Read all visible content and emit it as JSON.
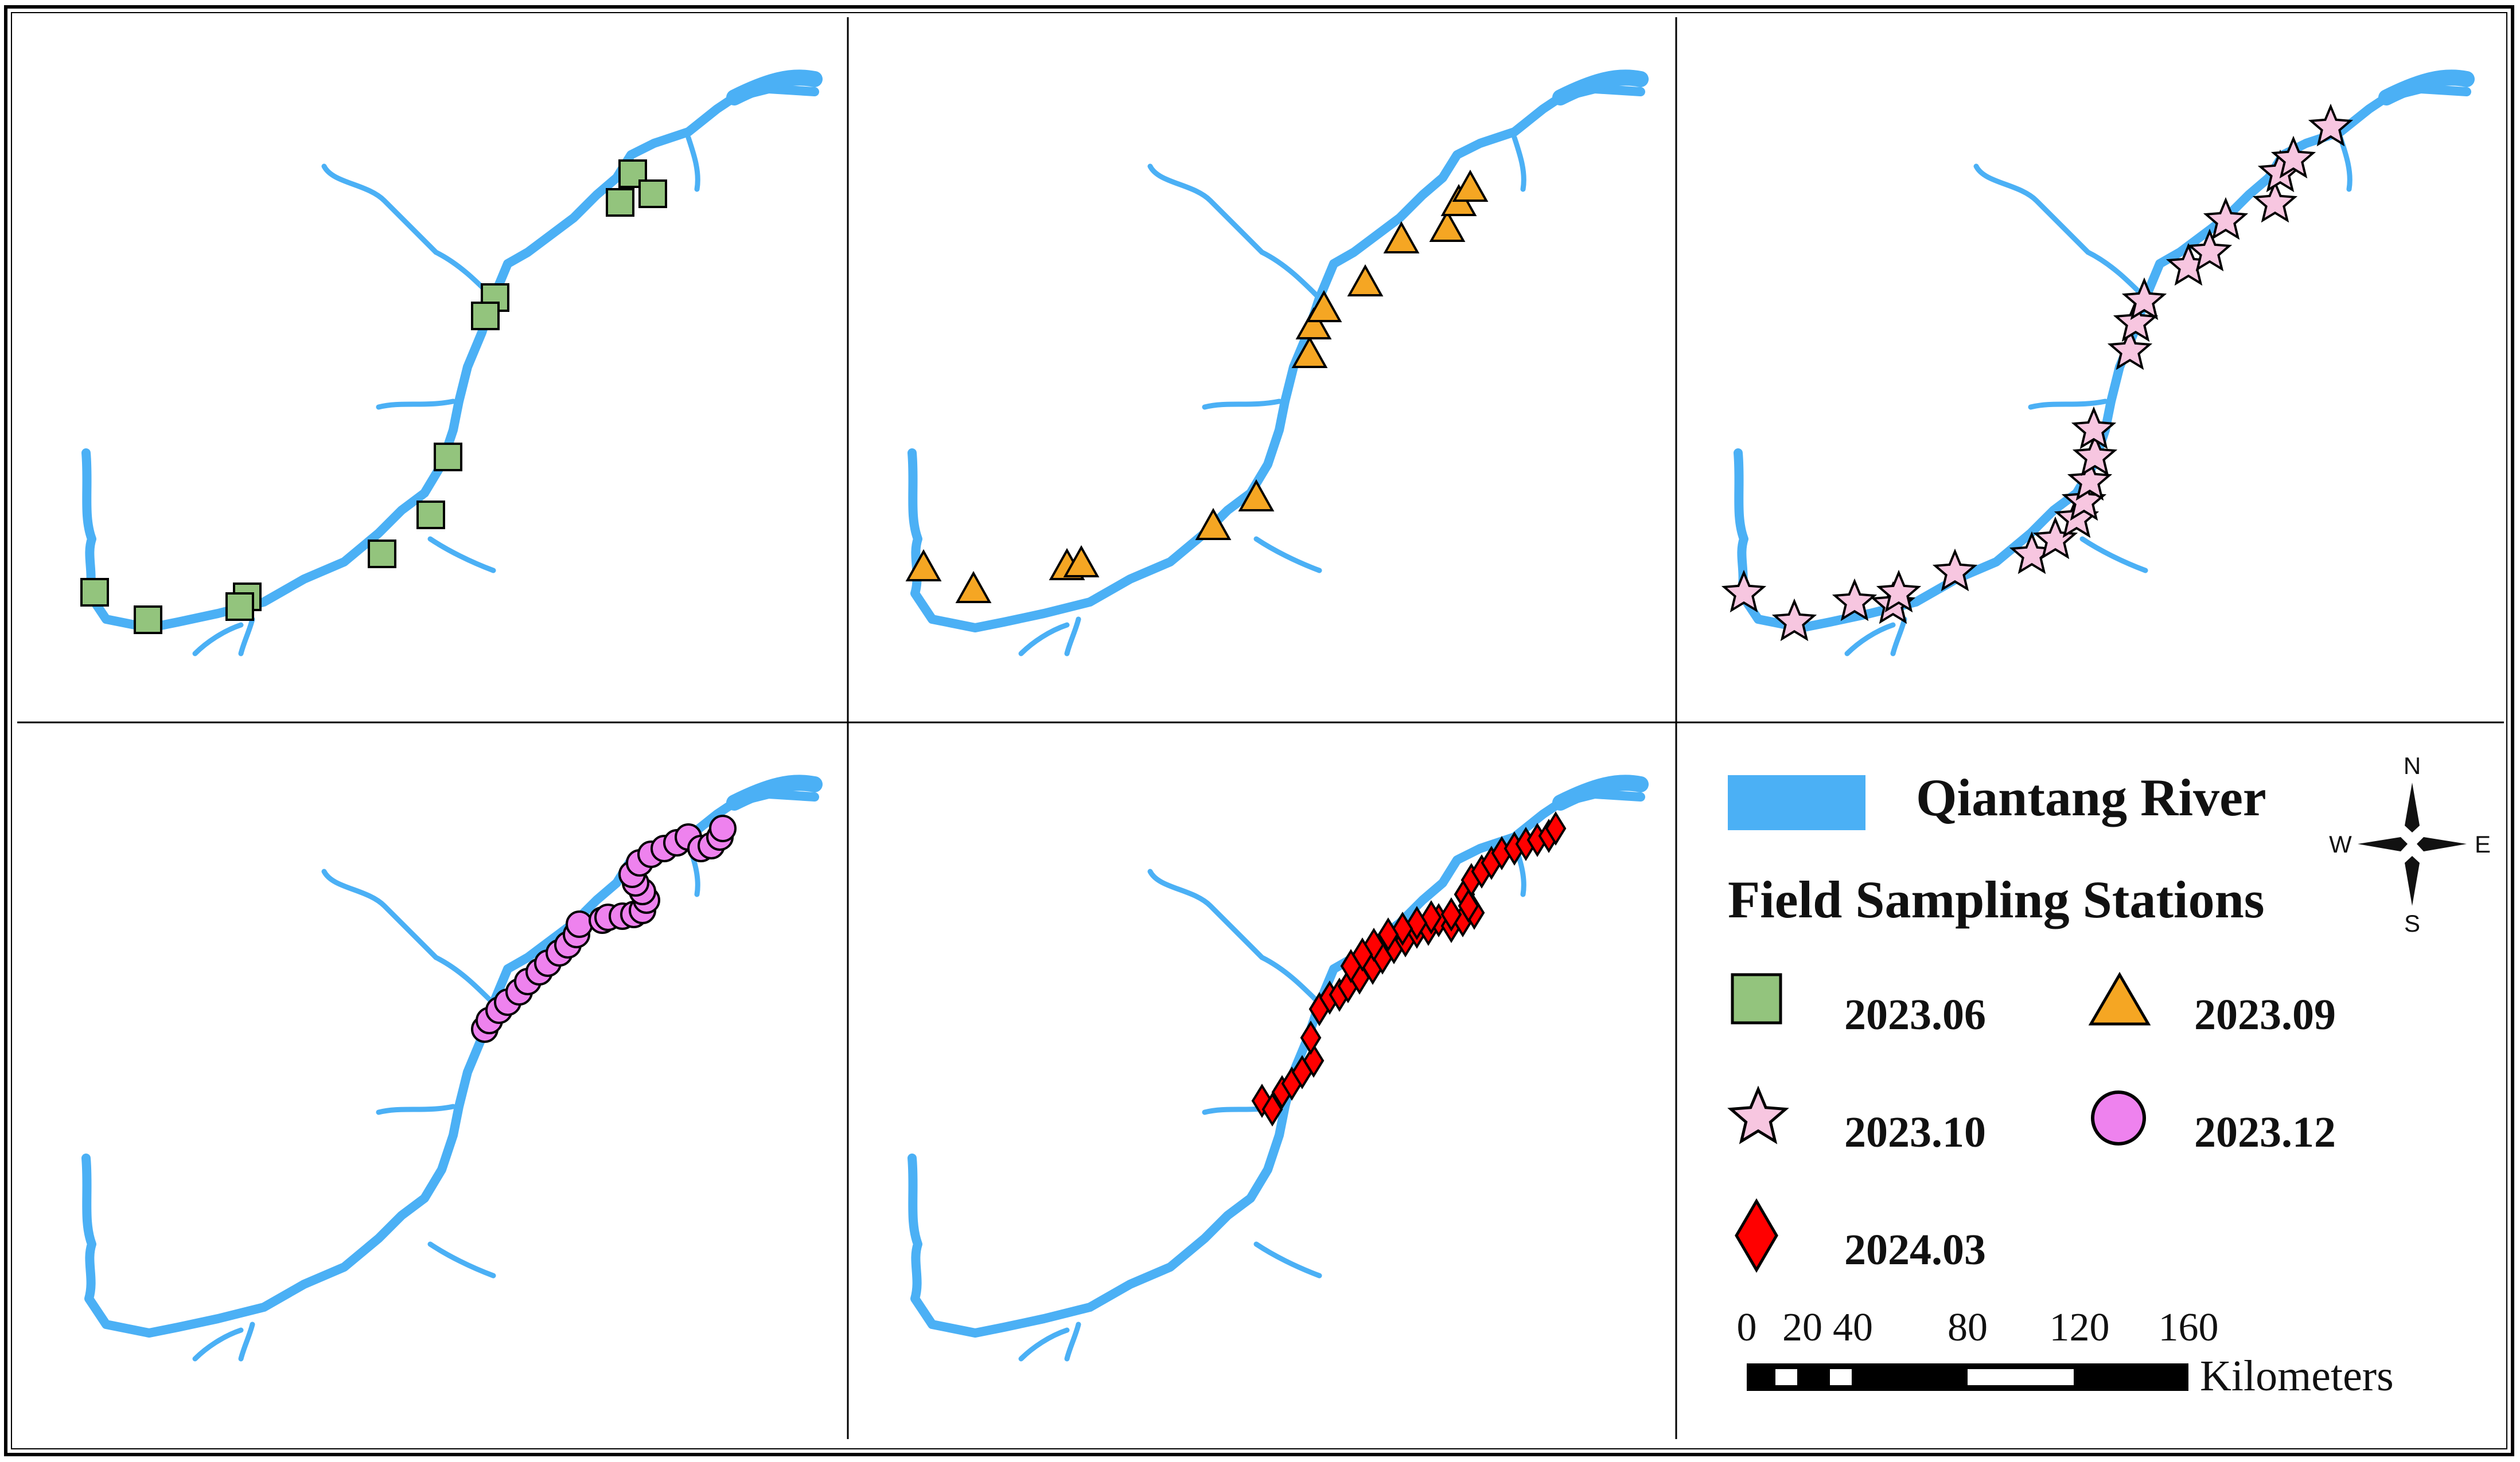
{
  "legend": {
    "river_label": "Qiantang River",
    "stations_title": "Field Sampling Stations",
    "items": [
      {
        "label": "2023.06",
        "shape": "square",
        "color": "#93c47d"
      },
      {
        "label": "2023.09",
        "shape": "triangle",
        "color": "#f5a623"
      },
      {
        "label": "2023.10",
        "shape": "star",
        "color": "#f7c6e0"
      },
      {
        "label": "2023.12",
        "shape": "circle",
        "color": "#ee82ee"
      },
      {
        "label": "2024.03",
        "shape": "diamond",
        "color": "#ff0000"
      }
    ]
  },
  "compass": {
    "n": "N",
    "s": "S",
    "e": "E",
    "w": "W"
  },
  "scale_bar": {
    "ticks": [
      "0",
      "20",
      "40",
      "80",
      "120",
      "160"
    ],
    "unit": "Kilometers"
  },
  "colors": {
    "river": "#4bb0f5",
    "frame": "#000000",
    "marker_outline": "#000000"
  },
  "panels": [
    {
      "id": "2023.06",
      "shape": "square"
    },
    {
      "id": "2023.09",
      "shape": "triangle"
    },
    {
      "id": "2023.10",
      "shape": "star"
    },
    {
      "id": "2023.12",
      "shape": "circle"
    },
    {
      "id": "2024.03",
      "shape": "diamond"
    }
  ]
}
